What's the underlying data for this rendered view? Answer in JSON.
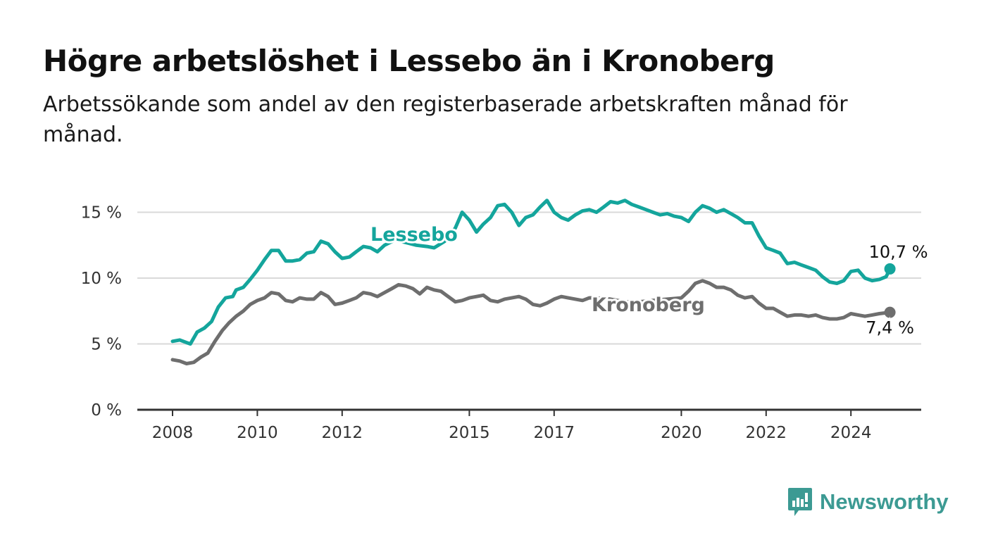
{
  "title": "Högre arbetslöshet i Lessebo än i Kronoberg",
  "subtitle": "Arbetssökande som andel av den registerbaserade arbetskraften månad för månad.",
  "brand": {
    "name": "Newsworthy",
    "color": "#3c9a93",
    "icon": "bar-chart-bubble-icon"
  },
  "chart_data": {
    "type": "line",
    "title": "Högre arbetslöshet i Lessebo än i Kronoberg",
    "subtitle": "Arbetssökande som andel av den registerbaserade arbetskraften månad för månad.",
    "xlabel": "",
    "ylabel": "",
    "xlim": [
      2008,
      2025.5
    ],
    "ylim": [
      0,
      17
    ],
    "x_ticks": [
      2008,
      2010,
      2012,
      2015,
      2017,
      2020,
      2022,
      2024
    ],
    "x_tick_labels": [
      "2008",
      "2010",
      "2012",
      "2015",
      "2017",
      "2020",
      "2022",
      "2024"
    ],
    "y_ticks": [
      0,
      5,
      10,
      15
    ],
    "y_tick_labels": [
      "0 %",
      "5 %",
      "10 %",
      "15 %"
    ],
    "grid": true,
    "legend": "inline labels on lines",
    "series": [
      {
        "name": "Lessebo",
        "color": "#14a59c",
        "end_label": "10,7 %",
        "points": [
          [
            2008.0,
            5.2
          ],
          [
            2008.17,
            5.3
          ],
          [
            2008.33,
            5.1
          ],
          [
            2008.42,
            5.0
          ],
          [
            2008.58,
            5.9
          ],
          [
            2008.75,
            6.2
          ],
          [
            2008.92,
            6.7
          ],
          [
            2009.08,
            7.8
          ],
          [
            2009.25,
            8.5
          ],
          [
            2009.42,
            8.6
          ],
          [
            2009.5,
            9.1
          ],
          [
            2009.67,
            9.3
          ],
          [
            2009.83,
            9.9
          ],
          [
            2010.0,
            10.6
          ],
          [
            2010.17,
            11.4
          ],
          [
            2010.33,
            12.1
          ],
          [
            2010.5,
            12.1
          ],
          [
            2010.67,
            11.3
          ],
          [
            2010.83,
            11.3
          ],
          [
            2011.0,
            11.4
          ],
          [
            2011.17,
            11.9
          ],
          [
            2011.33,
            12.0
          ],
          [
            2011.5,
            12.8
          ],
          [
            2011.67,
            12.6
          ],
          [
            2011.83,
            12.0
          ],
          [
            2012.0,
            11.5
          ],
          [
            2012.17,
            11.6
          ],
          [
            2012.33,
            12.0
          ],
          [
            2012.5,
            12.4
          ],
          [
            2012.67,
            12.3
          ],
          [
            2012.83,
            12.0
          ],
          [
            2013.0,
            12.5
          ],
          [
            2013.25,
            12.9
          ],
          [
            2013.5,
            12.7
          ],
          [
            2013.75,
            12.5
          ],
          [
            2014.0,
            12.4
          ],
          [
            2014.17,
            12.3
          ],
          [
            2014.42,
            12.8
          ],
          [
            2014.67,
            13.8
          ],
          [
            2014.83,
            15.0
          ],
          [
            2015.0,
            14.4
          ],
          [
            2015.17,
            13.5
          ],
          [
            2015.33,
            14.1
          ],
          [
            2015.5,
            14.6
          ],
          [
            2015.67,
            15.5
          ],
          [
            2015.83,
            15.6
          ],
          [
            2016.0,
            15.0
          ],
          [
            2016.17,
            14.0
          ],
          [
            2016.33,
            14.6
          ],
          [
            2016.5,
            14.8
          ],
          [
            2016.67,
            15.4
          ],
          [
            2016.83,
            15.9
          ],
          [
            2017.0,
            15.0
          ],
          [
            2017.17,
            14.6
          ],
          [
            2017.33,
            14.4
          ],
          [
            2017.5,
            14.8
          ],
          [
            2017.67,
            15.1
          ],
          [
            2017.83,
            15.2
          ],
          [
            2018.0,
            15.0
          ],
          [
            2018.17,
            15.4
          ],
          [
            2018.33,
            15.8
          ],
          [
            2018.5,
            15.7
          ],
          [
            2018.67,
            15.9
          ],
          [
            2018.83,
            15.6
          ],
          [
            2019.0,
            15.4
          ],
          [
            2019.17,
            15.2
          ],
          [
            2019.33,
            15.0
          ],
          [
            2019.5,
            14.8
          ],
          [
            2019.67,
            14.9
          ],
          [
            2019.83,
            14.7
          ],
          [
            2020.0,
            14.6
          ],
          [
            2020.17,
            14.3
          ],
          [
            2020.33,
            15.0
          ],
          [
            2020.5,
            15.5
          ],
          [
            2020.67,
            15.3
          ],
          [
            2020.83,
            15.0
          ],
          [
            2021.0,
            15.2
          ],
          [
            2021.17,
            14.9
          ],
          [
            2021.33,
            14.6
          ],
          [
            2021.5,
            14.2
          ],
          [
            2021.67,
            14.2
          ],
          [
            2021.83,
            13.2
          ],
          [
            2022.0,
            12.3
          ],
          [
            2022.17,
            12.1
          ],
          [
            2022.33,
            11.9
          ],
          [
            2022.5,
            11.1
          ],
          [
            2022.67,
            11.2
          ],
          [
            2022.83,
            11.0
          ],
          [
            2023.0,
            10.8
          ],
          [
            2023.17,
            10.6
          ],
          [
            2023.33,
            10.1
          ],
          [
            2023.5,
            9.7
          ],
          [
            2023.67,
            9.6
          ],
          [
            2023.83,
            9.8
          ],
          [
            2024.0,
            10.5
          ],
          [
            2024.17,
            10.6
          ],
          [
            2024.33,
            10.0
          ],
          [
            2024.5,
            9.8
          ],
          [
            2024.67,
            9.9
          ],
          [
            2024.83,
            10.1
          ],
          [
            2024.92,
            10.7
          ]
        ]
      },
      {
        "name": "Kronoberg",
        "color": "#6e6e6e",
        "end_label": "7,4 %",
        "points": [
          [
            2008.0,
            3.8
          ],
          [
            2008.17,
            3.7
          ],
          [
            2008.33,
            3.5
          ],
          [
            2008.5,
            3.6
          ],
          [
            2008.67,
            4.0
          ],
          [
            2008.83,
            4.3
          ],
          [
            2009.0,
            5.2
          ],
          [
            2009.17,
            6.0
          ],
          [
            2009.33,
            6.6
          ],
          [
            2009.5,
            7.1
          ],
          [
            2009.67,
            7.5
          ],
          [
            2009.83,
            8.0
          ],
          [
            2010.0,
            8.3
          ],
          [
            2010.17,
            8.5
          ],
          [
            2010.33,
            8.9
          ],
          [
            2010.5,
            8.8
          ],
          [
            2010.67,
            8.3
          ],
          [
            2010.83,
            8.2
          ],
          [
            2011.0,
            8.5
          ],
          [
            2011.17,
            8.4
          ],
          [
            2011.33,
            8.4
          ],
          [
            2011.5,
            8.9
          ],
          [
            2011.67,
            8.6
          ],
          [
            2011.83,
            8.0
          ],
          [
            2012.0,
            8.1
          ],
          [
            2012.17,
            8.3
          ],
          [
            2012.33,
            8.5
          ],
          [
            2012.5,
            8.9
          ],
          [
            2012.67,
            8.8
          ],
          [
            2012.83,
            8.6
          ],
          [
            2013.0,
            8.9
          ],
          [
            2013.17,
            9.2
          ],
          [
            2013.33,
            9.5
          ],
          [
            2013.5,
            9.4
          ],
          [
            2013.67,
            9.2
          ],
          [
            2013.83,
            8.8
          ],
          [
            2014.0,
            9.3
          ],
          [
            2014.17,
            9.1
          ],
          [
            2014.33,
            9.0
          ],
          [
            2014.5,
            8.6
          ],
          [
            2014.67,
            8.2
          ],
          [
            2014.83,
            8.3
          ],
          [
            2015.0,
            8.5
          ],
          [
            2015.17,
            8.6
          ],
          [
            2015.33,
            8.7
          ],
          [
            2015.5,
            8.3
          ],
          [
            2015.67,
            8.2
          ],
          [
            2015.83,
            8.4
          ],
          [
            2016.0,
            8.5
          ],
          [
            2016.17,
            8.6
          ],
          [
            2016.33,
            8.4
          ],
          [
            2016.5,
            8.0
          ],
          [
            2016.67,
            7.9
          ],
          [
            2016.83,
            8.1
          ],
          [
            2017.0,
            8.4
          ],
          [
            2017.17,
            8.6
          ],
          [
            2017.33,
            8.5
          ],
          [
            2017.5,
            8.4
          ],
          [
            2017.67,
            8.3
          ],
          [
            2017.83,
            8.5
          ],
          [
            2018.0,
            8.5
          ],
          [
            2018.33,
            8.4
          ],
          [
            2018.67,
            8.2
          ],
          [
            2019.0,
            8.2
          ],
          [
            2019.33,
            8.3
          ],
          [
            2019.67,
            8.4
          ],
          [
            2020.0,
            8.5
          ],
          [
            2020.17,
            9.0
          ],
          [
            2020.33,
            9.6
          ],
          [
            2020.5,
            9.8
          ],
          [
            2020.67,
            9.6
          ],
          [
            2020.83,
            9.3
          ],
          [
            2021.0,
            9.3
          ],
          [
            2021.17,
            9.1
          ],
          [
            2021.33,
            8.7
          ],
          [
            2021.5,
            8.5
          ],
          [
            2021.67,
            8.6
          ],
          [
            2021.83,
            8.1
          ],
          [
            2022.0,
            7.7
          ],
          [
            2022.17,
            7.7
          ],
          [
            2022.33,
            7.4
          ],
          [
            2022.5,
            7.1
          ],
          [
            2022.67,
            7.2
          ],
          [
            2022.83,
            7.2
          ],
          [
            2023.0,
            7.1
          ],
          [
            2023.17,
            7.2
          ],
          [
            2023.33,
            7.0
          ],
          [
            2023.5,
            6.9
          ],
          [
            2023.67,
            6.9
          ],
          [
            2023.83,
            7.0
          ],
          [
            2024.0,
            7.3
          ],
          [
            2024.17,
            7.2
          ],
          [
            2024.33,
            7.1
          ],
          [
            2024.5,
            7.2
          ],
          [
            2024.67,
            7.3
          ],
          [
            2024.92,
            7.4
          ]
        ]
      }
    ]
  }
}
